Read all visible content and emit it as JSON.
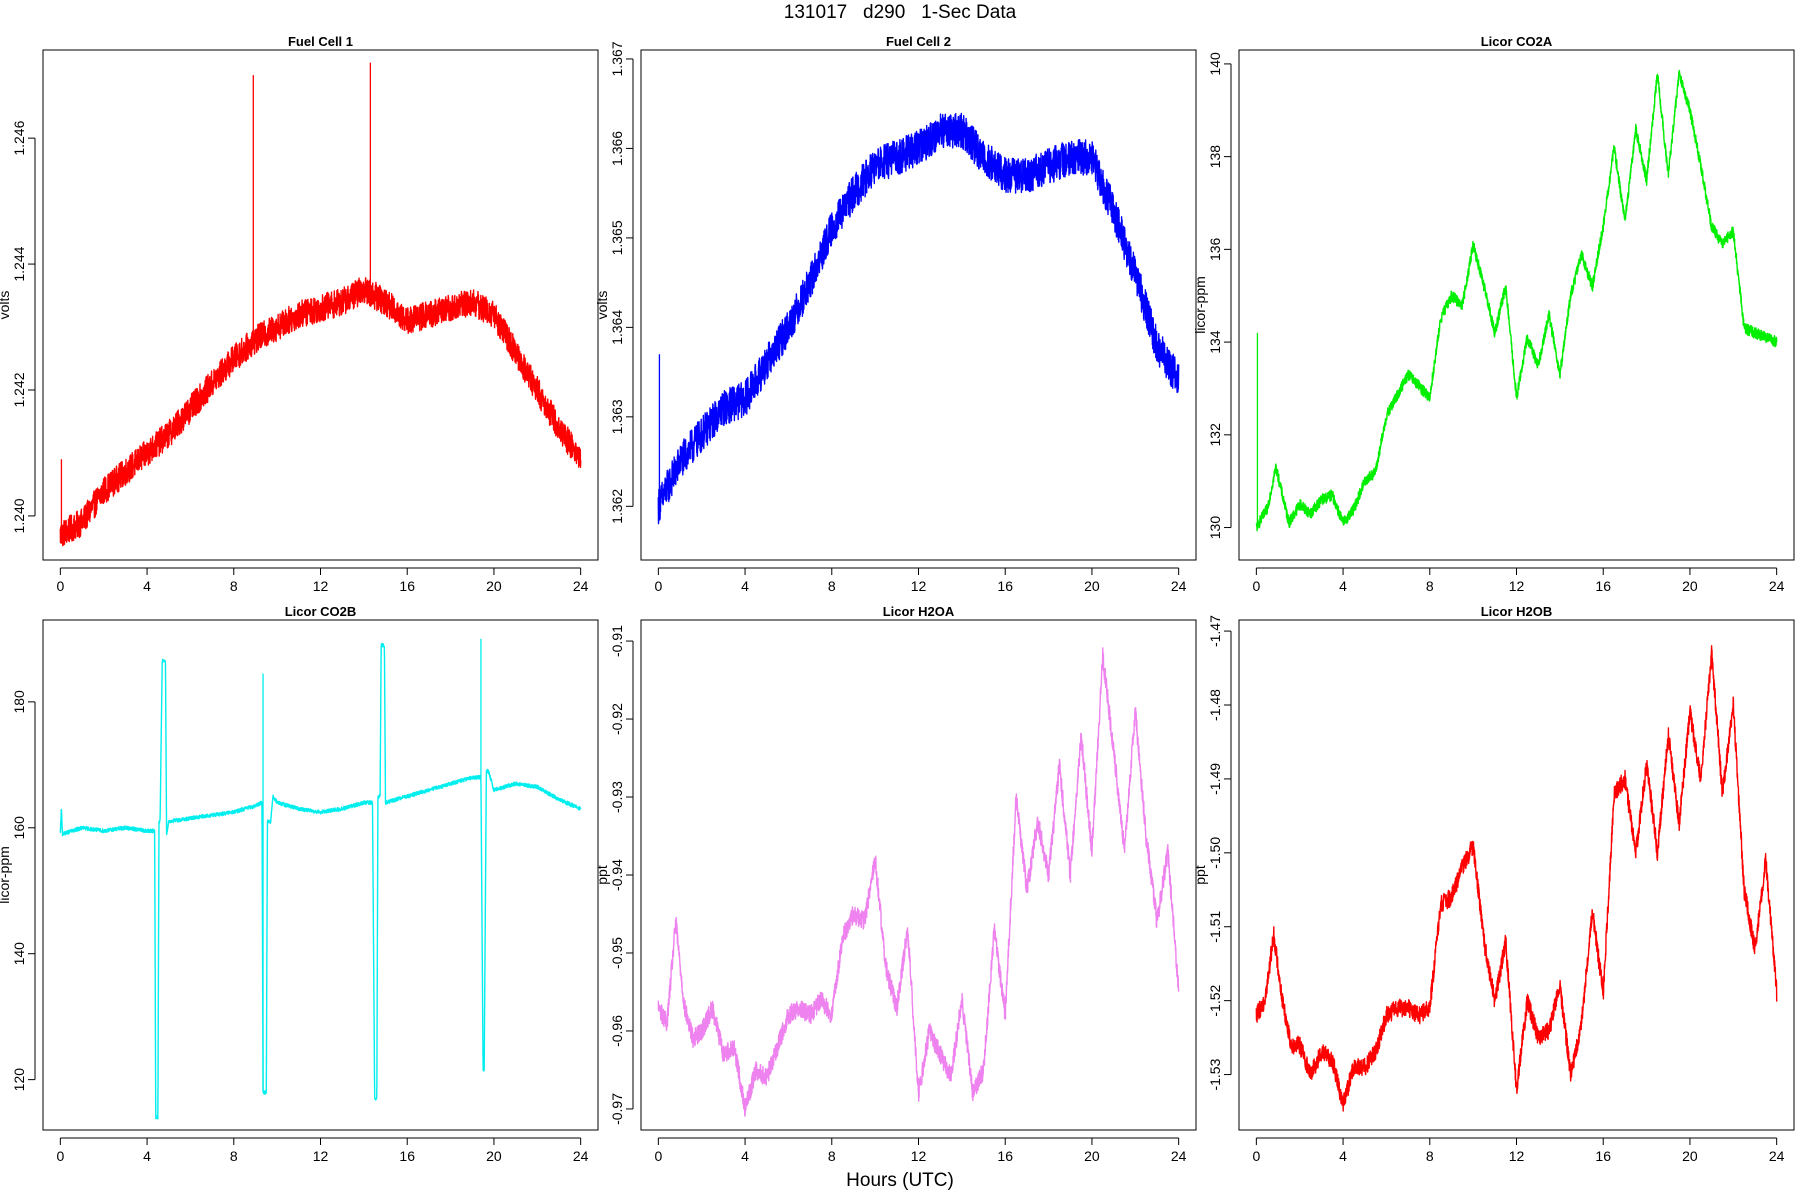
{
  "page": {
    "title": "131017   d290   1-Sec Data",
    "xlabel": "Hours (UTC)"
  },
  "chart_data": [
    {
      "type": "line",
      "title": "Fuel Cell 1",
      "ylabel": "volts",
      "color": "#ff0000",
      "xlim": [
        -0.8,
        24.8
      ],
      "ylim": [
        1.2393,
        1.2474
      ],
      "xticks": [
        0,
        4,
        8,
        12,
        16,
        20,
        24
      ],
      "yticks": [
        1.24,
        1.242,
        1.244,
        1.246
      ],
      "ytick_labels": [
        "1.240",
        "1.242",
        "1.244",
        "1.246"
      ],
      "noise": 0.00022,
      "x": [
        0,
        0.5,
        1,
        2,
        3,
        4,
        5,
        6,
        7,
        8,
        9,
        10,
        11,
        12,
        13,
        14,
        15,
        16,
        17,
        18,
        19,
        20,
        21,
        22,
        23,
        24
      ],
      "y": [
        1.2397,
        1.2398,
        1.2399,
        1.2404,
        1.2407,
        1.241,
        1.2413,
        1.2417,
        1.2421,
        1.2425,
        1.2428,
        1.243,
        1.2432,
        1.2433,
        1.2434,
        1.2436,
        1.2434,
        1.2431,
        1.2432,
        1.2433,
        1.2434,
        1.2432,
        1.2426,
        1.242,
        1.2414,
        1.2409
      ],
      "spikes": [
        [
          0.05,
          1.2409
        ],
        [
          8.9,
          1.247
        ],
        [
          14.3,
          1.2472
        ]
      ]
    },
    {
      "type": "line",
      "title": "Fuel Cell 2",
      "ylabel": "volts",
      "color": "#0000ff",
      "xlim": [
        -0.8,
        24.8
      ],
      "ylim": [
        1.3614,
        1.3671
      ],
      "xticks": [
        0,
        4,
        8,
        12,
        16,
        20,
        24
      ],
      "yticks": [
        1.362,
        1.363,
        1.364,
        1.365,
        1.366,
        1.367
      ],
      "ytick_labels": [
        "1.362",
        "1.363",
        "1.364",
        "1.365",
        "1.366",
        "1.367"
      ],
      "noise": 0.0002,
      "x": [
        0,
        1,
        2,
        3,
        4,
        5,
        6,
        7,
        8,
        9,
        10,
        11,
        12,
        13,
        14,
        15,
        16,
        17,
        18,
        19,
        20,
        21,
        22,
        23,
        24
      ],
      "y": [
        1.362,
        1.3625,
        1.3628,
        1.3631,
        1.3632,
        1.3636,
        1.364,
        1.3645,
        1.3651,
        1.3655,
        1.3658,
        1.3659,
        1.366,
        1.3662,
        1.3662,
        1.3659,
        1.3657,
        1.3657,
        1.3658,
        1.3659,
        1.3659,
        1.3653,
        1.3646,
        1.3638,
        1.3634
      ],
      "spikes": [
        [
          0.05,
          1.3637
        ]
      ]
    },
    {
      "type": "line",
      "title": "Licor CO2A",
      "ylabel": "licor-ppm",
      "color": "#00ee00",
      "xlim": [
        -0.8,
        24.8
      ],
      "ylim": [
        129.3,
        140.3
      ],
      "xticks": [
        0,
        4,
        8,
        12,
        16,
        20,
        24
      ],
      "yticks": [
        130,
        132,
        134,
        136,
        138,
        140
      ],
      "ytick_labels": [
        "130",
        "132",
        "134",
        "136",
        "138",
        "140"
      ],
      "noise": 0.12,
      "x": [
        0,
        0.5,
        0.9,
        1.5,
        2,
        2.5,
        3,
        3.5,
        4,
        4.5,
        5,
        5.5,
        6,
        7,
        8,
        8.5,
        9,
        9.5,
        10,
        10.5,
        11,
        11.5,
        12,
        12.5,
        13,
        13.5,
        14,
        14.5,
        15,
        15.5,
        16,
        16.5,
        17,
        17.5,
        18,
        18.5,
        19,
        19.5,
        20,
        20.5,
        21,
        21.5,
        22,
        22.5,
        23,
        23.5,
        24
      ],
      "y": [
        130,
        130.4,
        131.3,
        130.1,
        130.5,
        130.3,
        130.6,
        130.7,
        130.1,
        130.4,
        131,
        131.2,
        132.4,
        133.3,
        132.8,
        134.5,
        135,
        134.8,
        136.1,
        135.2,
        134.2,
        135.2,
        132.8,
        134.1,
        133.5,
        134.6,
        133.3,
        135,
        135.9,
        135.2,
        136.5,
        138.2,
        136.6,
        138.6,
        137.5,
        139.8,
        137.6,
        139.8,
        139,
        137.8,
        136.5,
        136.1,
        136.4,
        134.3,
        134.2,
        134.1,
        134
      ],
      "spikes": [
        [
          0.05,
          134.2
        ]
      ]
    },
    {
      "type": "line",
      "title": "Licor CO2B",
      "ylabel": "licor-ppm",
      "color": "#00eeee",
      "xlim": [
        -0.8,
        24.8
      ],
      "ylim": [
        112,
        193
      ],
      "xticks": [
        0,
        4,
        8,
        12,
        16,
        20,
        24
      ],
      "yticks": [
        120,
        140,
        160,
        180
      ],
      "ytick_labels": [
        "120",
        "140",
        "160",
        "180"
      ],
      "noise": 0.3,
      "x": [
        0,
        0.05,
        0.1,
        1,
        2,
        3,
        4,
        4.35,
        4.4,
        4.5,
        4.55,
        4.6,
        4.7,
        4.75,
        4.85,
        4.9,
        5,
        6,
        7,
        8,
        9,
        9.3,
        9.35,
        9.5,
        9.55,
        9.7,
        9.8,
        10,
        11,
        12,
        13,
        14,
        14.4,
        14.5,
        14.6,
        14.65,
        14.75,
        14.8,
        14.95,
        15,
        16,
        17,
        18,
        19,
        19.4,
        19.5,
        19.55,
        19.65,
        19.75,
        20,
        21,
        22,
        23,
        24
      ],
      "y": [
        159,
        163,
        159,
        160,
        159.5,
        160,
        159.5,
        159.5,
        114,
        114,
        161,
        161,
        186.5,
        186.5,
        186.5,
        159,
        161,
        161.5,
        162,
        162.5,
        163.5,
        164,
        118,
        118,
        161,
        161,
        165,
        164,
        163,
        162.5,
        163,
        164,
        164,
        117,
        117,
        165,
        165,
        189,
        189,
        164,
        165,
        166,
        167,
        168,
        168,
        121.5,
        121.5,
        169,
        169,
        166,
        167,
        166.5,
        164.5,
        163
      ],
      "spikes": [
        [
          9.35,
          184.5
        ],
        [
          19.4,
          190
        ]
      ]
    },
    {
      "type": "line",
      "title": "Licor H2OA",
      "ylabel": "ppt",
      "color": "#ee82ee",
      "xlim": [
        -0.8,
        24.8
      ],
      "ylim": [
        -0.9727,
        -0.9073
      ],
      "xticks": [
        0,
        4,
        8,
        12,
        16,
        20,
        24
      ],
      "yticks": [
        -0.97,
        -0.96,
        -0.95,
        -0.94,
        -0.93,
        -0.92,
        -0.91
      ],
      "ytick_labels": [
        "-0.97",
        "-0.96",
        "-0.95",
        "-0.94",
        "-0.93",
        "-0.92",
        "-0.91"
      ],
      "noise": 0.0012,
      "x": [
        0,
        0.4,
        0.8,
        1.2,
        1.6,
        2,
        2.5,
        3,
        3.5,
        4,
        4.5,
        5,
        5.5,
        6,
        6.5,
        7,
        7.5,
        8,
        8.5,
        9,
        9.5,
        10,
        10.5,
        11,
        11.5,
        12,
        12.5,
        13,
        13.5,
        14,
        14.5,
        15,
        15.5,
        16,
        16.5,
        17,
        17.5,
        18,
        18.5,
        19,
        19.5,
        20,
        20.5,
        21,
        21.5,
        22,
        22.5,
        23,
        23.5,
        24
      ],
      "y": [
        -0.957,
        -0.959,
        -0.946,
        -0.957,
        -0.961,
        -0.96,
        -0.957,
        -0.963,
        -0.962,
        -0.97,
        -0.965,
        -0.966,
        -0.962,
        -0.958,
        -0.957,
        -0.958,
        -0.956,
        -0.958,
        -0.948,
        -0.945,
        -0.946,
        -0.938,
        -0.952,
        -0.957,
        -0.947,
        -0.968,
        -0.96,
        -0.963,
        -0.966,
        -0.956,
        -0.968,
        -0.965,
        -0.947,
        -0.958,
        -0.93,
        -0.942,
        -0.933,
        -0.94,
        -0.926,
        -0.94,
        -0.922,
        -0.937,
        -0.912,
        -0.924,
        -0.937,
        -0.919,
        -0.935,
        -0.946,
        -0.937,
        -0.955
      ],
      "spikes": []
    },
    {
      "type": "line",
      "title": "Licor H2OB",
      "ylabel": "ppt",
      "color": "#ff0000",
      "xlim": [
        -0.8,
        24.8
      ],
      "ylim": [
        -1.5375,
        -1.4685
      ],
      "xticks": [
        0,
        4,
        8,
        12,
        16,
        20,
        24
      ],
      "yticks": [
        -1.53,
        -1.52,
        -1.51,
        -1.5,
        -1.49,
        -1.48,
        -1.47
      ],
      "ytick_labels": [
        "-1.53",
        "-1.52",
        "-1.51",
        "-1.50",
        "-1.49",
        "-1.48",
        "-1.47"
      ],
      "noise": 0.0012,
      "x": [
        0,
        0.4,
        0.8,
        1.2,
        1.6,
        2,
        2.5,
        3,
        3.5,
        4,
        4.5,
        5,
        5.5,
        6,
        6.5,
        7,
        7.5,
        8,
        8.5,
        9,
        9.5,
        10,
        10.5,
        11,
        11.5,
        12,
        12.5,
        13,
        13.5,
        14,
        14.5,
        15,
        15.5,
        16,
        16.5,
        17,
        17.5,
        18,
        18.5,
        19,
        19.5,
        20,
        20.5,
        21,
        21.5,
        22,
        22.5,
        23,
        23.5,
        24
      ],
      "y": [
        -1.522,
        -1.52,
        -1.511,
        -1.52,
        -1.526,
        -1.526,
        -1.53,
        -1.527,
        -1.528,
        -1.534,
        -1.529,
        -1.529,
        -1.527,
        -1.522,
        -1.521,
        -1.521,
        -1.522,
        -1.521,
        -1.507,
        -1.506,
        -1.502,
        -1.499,
        -1.512,
        -1.52,
        -1.512,
        -1.532,
        -1.52,
        -1.525,
        -1.524,
        -1.518,
        -1.53,
        -1.523,
        -1.508,
        -1.519,
        -1.492,
        -1.49,
        -1.5,
        -1.488,
        -1.5,
        -1.484,
        -1.496,
        -1.481,
        -1.49,
        -1.473,
        -1.492,
        -1.48,
        -1.505,
        -1.513,
        -1.501,
        -1.519
      ],
      "spikes": []
    }
  ]
}
